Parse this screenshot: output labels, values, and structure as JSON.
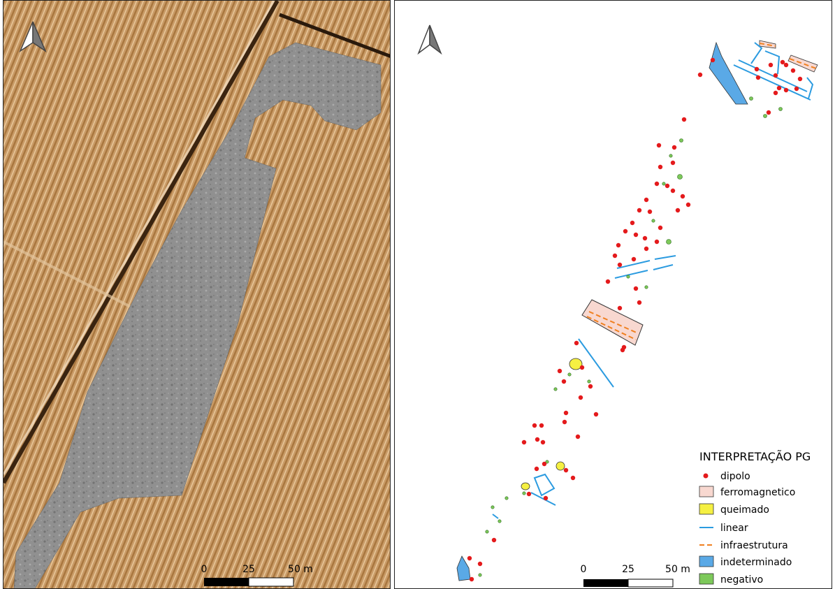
{
  "left_map": {
    "scale": {
      "ticks": [
        "0",
        "25",
        "50 m"
      ]
    }
  },
  "right_map": {
    "scale": {
      "ticks": [
        "0",
        "25",
        "50 m"
      ]
    },
    "legend": {
      "title": "INTERPRETAÇÃO PG",
      "items": [
        {
          "label": "dipolo",
          "symbol": "point",
          "color": "#e41a1c"
        },
        {
          "label": "ferromagnetico",
          "symbol": "box",
          "color": "#f8d8d0"
        },
        {
          "label": "queimado",
          "symbol": "box",
          "color": "#f5f042"
        },
        {
          "label": "linear",
          "symbol": "line",
          "color": "#2b9be0"
        },
        {
          "label": "infraestrutura",
          "symbol": "dash",
          "color": "#f08020"
        },
        {
          "label": "indeterminado",
          "symbol": "box",
          "color": "#5aa9e6"
        },
        {
          "label": "negativo",
          "symbol": "box",
          "color": "#7dc95a"
        }
      ]
    }
  }
}
